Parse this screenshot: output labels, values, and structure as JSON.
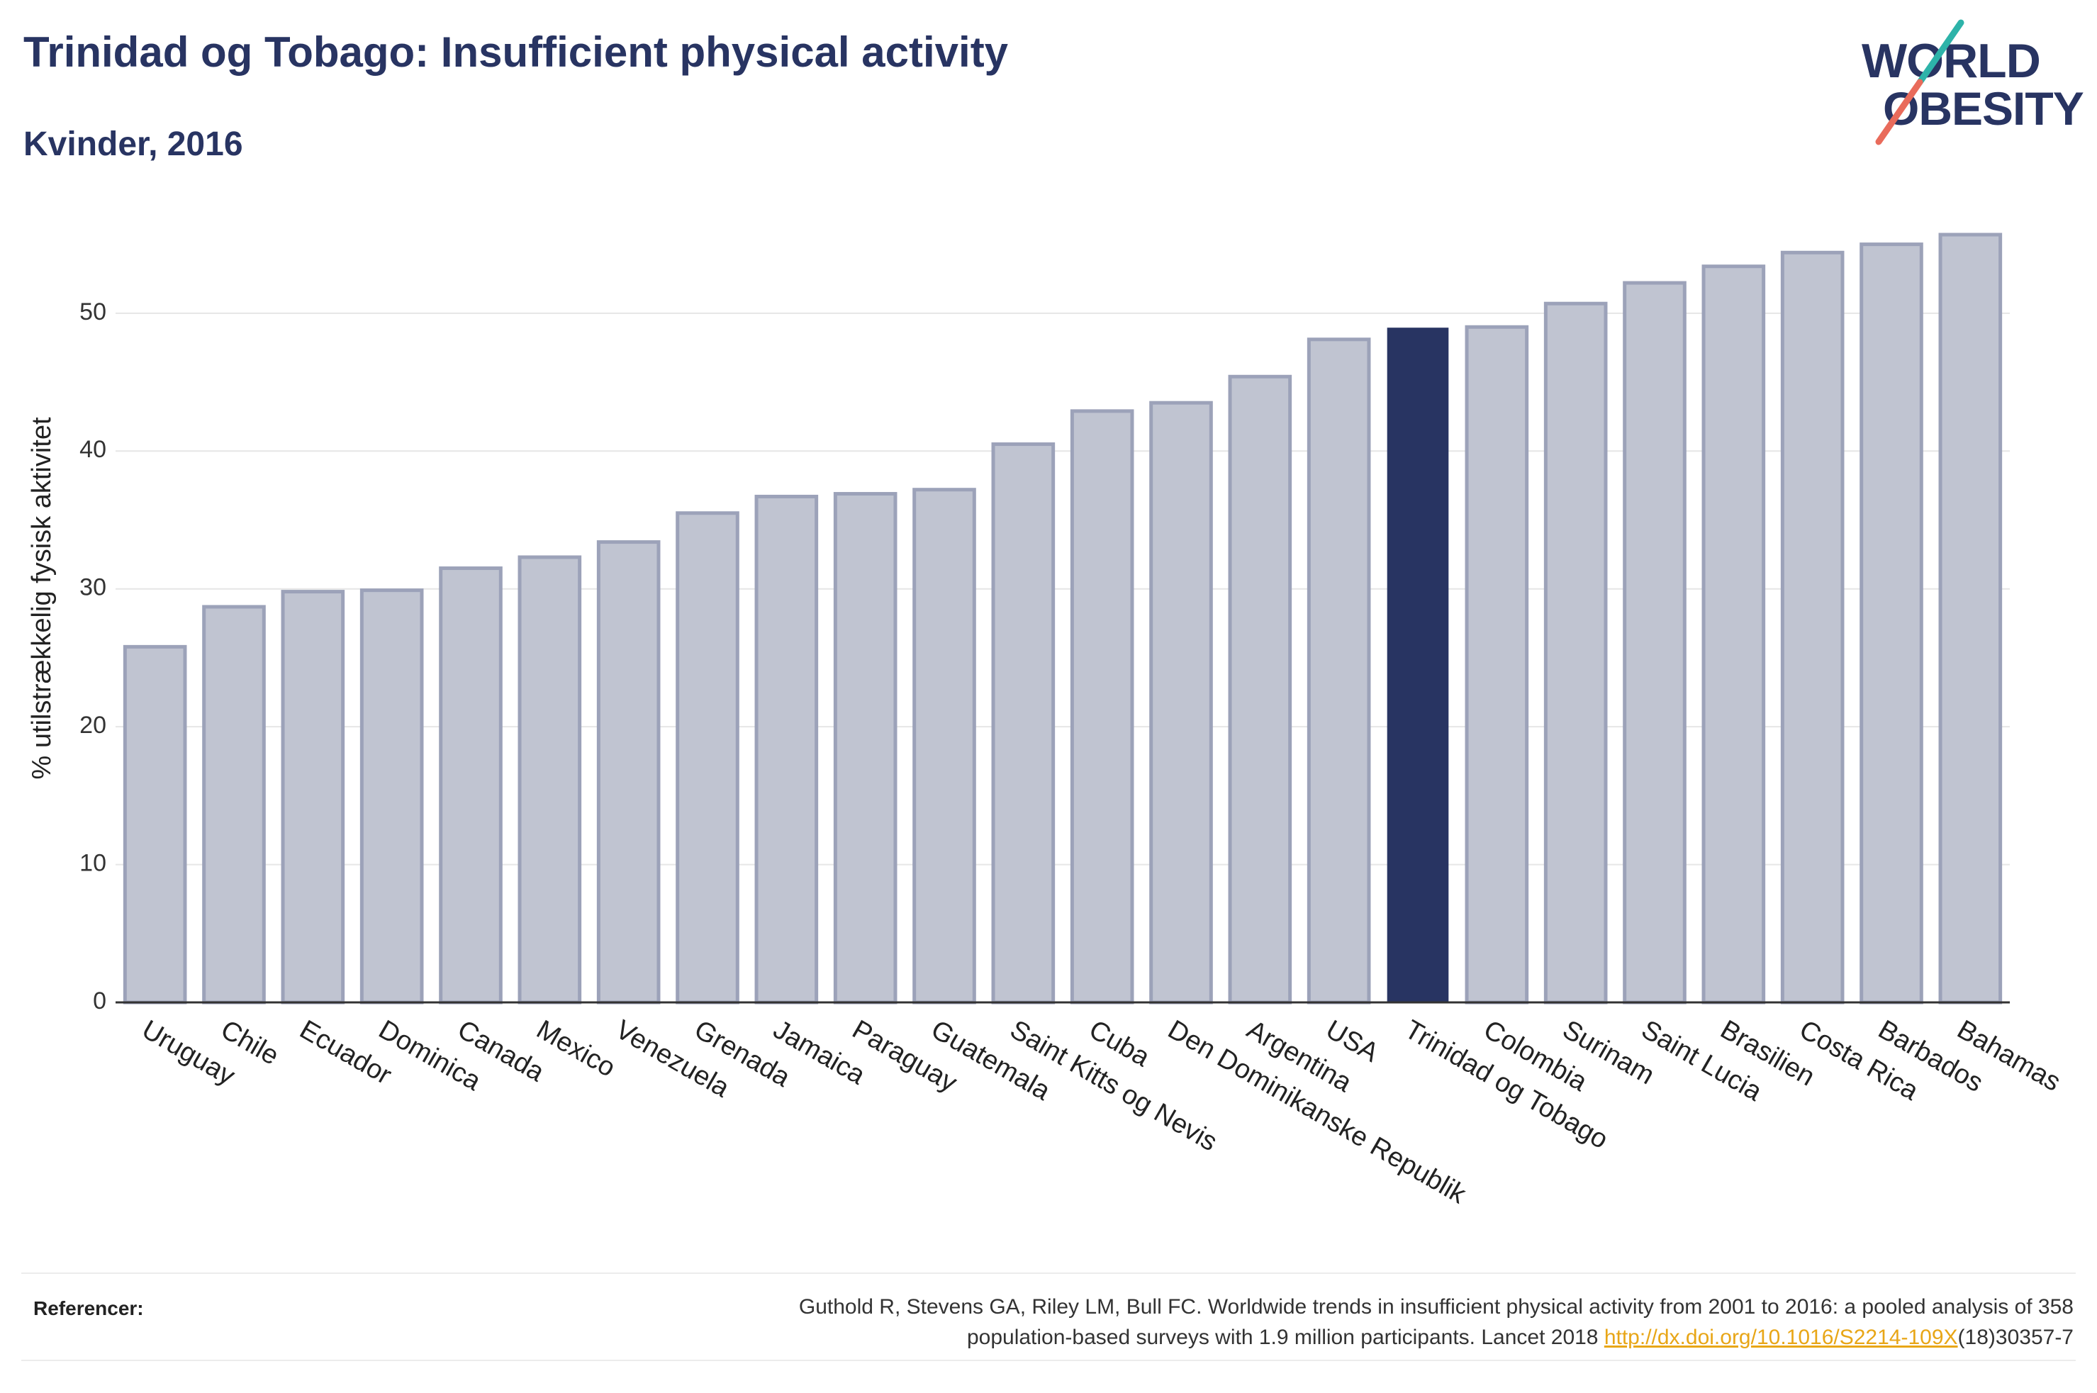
{
  "header": {
    "title": "Trinidad og Tobago: Insufficient physical activity",
    "subtitle": "Kvinder, 2016"
  },
  "logo": {
    "line1": "WORLD",
    "line2": "OBESITY",
    "teal": "#2db3a9",
    "coral": "#e96b5b"
  },
  "colors": {
    "primary": "#283462",
    "bar": "#c0c4d1",
    "bar_outline": "#9ca2b9",
    "gridline": "#e6e6e6",
    "link": "#e8a617"
  },
  "chart_data": {
    "type": "bar",
    "categories": [
      "Uruguay",
      "Chile",
      "Ecuador",
      "Dominica",
      "Canada",
      "Mexico",
      "Venezuela",
      "Grenada",
      "Jamaica",
      "Paraguay",
      "Guatemala",
      "Saint Kitts og Nevis",
      "Cuba",
      "Den Dominikanske Republik",
      "Argentina",
      "USA",
      "Trinidad og Tobago",
      "Colombia",
      "Surinam",
      "Saint Lucia",
      "Brasilien",
      "Costa Rica",
      "Barbados",
      "Bahamas"
    ],
    "values": [
      25.8,
      28.7,
      29.8,
      29.9,
      31.5,
      32.3,
      33.4,
      35.5,
      36.7,
      36.9,
      37.2,
      40.5,
      42.9,
      43.5,
      45.4,
      48.1,
      48.9,
      49.0,
      50.7,
      52.2,
      53.4,
      54.4,
      55.0,
      55.7
    ],
    "highlight": "Trinidad og Tobago",
    "xlabel": "",
    "ylabel": "% utilstrækkelig fysisk aktivitet",
    "yticks": [
      0,
      10,
      20,
      30,
      40,
      50
    ],
    "ylim": [
      0,
      57.5
    ],
    "grid": true
  },
  "footer": {
    "label": "Referencer:",
    "line1": "Guthold R, Stevens GA, Riley LM, Bull FC. Worldwide trends in insufficient physical activity from 2001 to 2016: a pooled analysis of 358",
    "line2_prefix": "population-based surveys with 1.9 million participants. Lancet 2018 ",
    "link": "http://dx.doi.org/10.1016/S2214-109X",
    "line2_suffix": "(18)30357-7"
  }
}
